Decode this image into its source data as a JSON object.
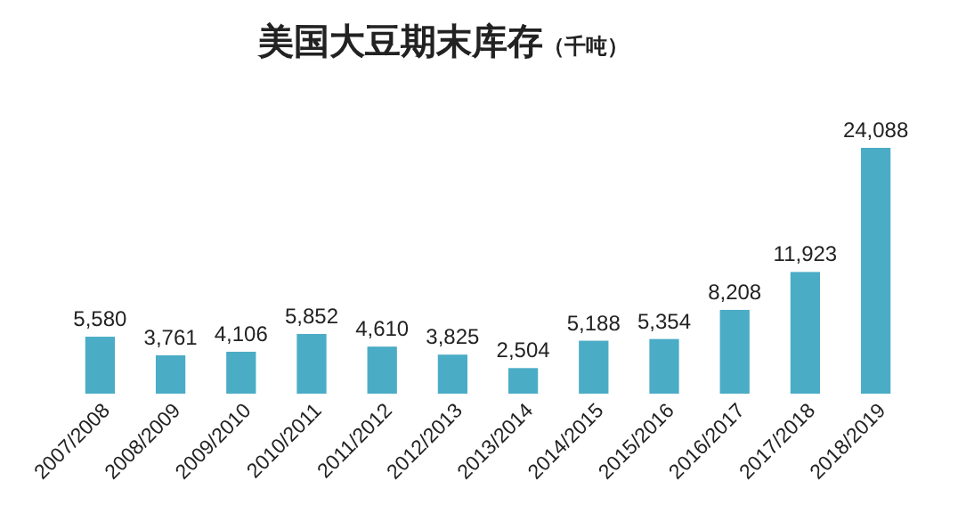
{
  "chart_data": {
    "type": "bar",
    "title": "美国大豆期末库存",
    "subtitle": "（千吨）",
    "categories": [
      "2007/2008",
      "2008/2009",
      "2009/2010",
      "2010/2011",
      "2011/2012",
      "2012/2013",
      "2013/2014",
      "2014/2015",
      "2015/2016",
      "2016/2017",
      "2017/2018",
      "2018/2019"
    ],
    "values": [
      5580,
      3761,
      4106,
      5852,
      4610,
      3825,
      2504,
      5188,
      5354,
      8208,
      11923,
      24088
    ],
    "value_labels": [
      "5,580",
      "3,761",
      "4,106",
      "5,852",
      "4,610",
      "3,825",
      "2,504",
      "5,188",
      "5,354",
      "8,208",
      "11,923",
      "24,088"
    ],
    "color": "#4bacc6",
    "data_labels": true
  }
}
